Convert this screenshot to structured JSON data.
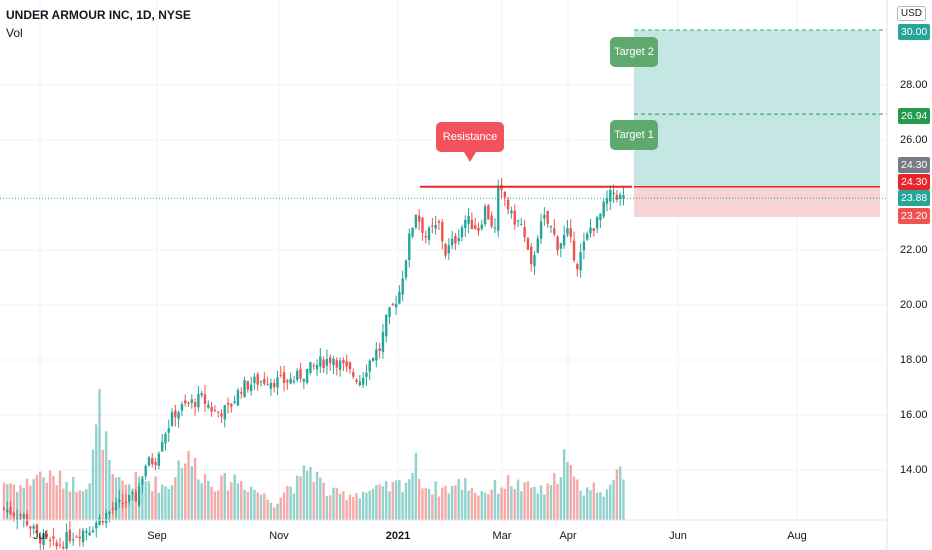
{
  "header": {
    "title": "UNDER ARMOUR INC, 1D, NYSE",
    "volume_label": "Vol",
    "currency": "USD"
  },
  "colors": {
    "up": "#26a69a",
    "down": "#ef5350",
    "resistance": "#e8252a",
    "target_zone": "#b2dfdb",
    "stop_zone": "#f8c9c9",
    "callout_red": "#f2525c",
    "callout_green": "#5fa86e"
  },
  "annotations": {
    "resistance": "Resistance",
    "target1": "Target 1",
    "target2": "Target 2"
  },
  "price_labels": {
    "target2": "30.00",
    "target1": "26.94",
    "high": "24.30",
    "entry": "24.30",
    "last": "23.88",
    "stop": "23.20"
  },
  "chart_data": {
    "type": "candlestick",
    "title": "UNDER ARMOUR INC, 1D, NYSE",
    "x_ticks": [
      "Jul",
      "Sep",
      "Nov",
      "2021",
      "Mar",
      "Apr",
      "Jun",
      "Aug"
    ],
    "y_ticks": [
      14,
      16,
      18,
      20,
      22,
      24,
      26,
      28
    ],
    "ylim": [
      12.2,
      31.2
    ],
    "levels": {
      "resistance": 24.3,
      "target1": 26.94,
      "target2": 30.0,
      "entry": 24.3,
      "stop": 23.2,
      "last": 23.88
    },
    "close_path": [
      [
        0,
        12.6
      ],
      [
        6,
        12.3
      ],
      [
        10,
        11.6
      ],
      [
        16,
        11.2
      ],
      [
        20,
        11.6
      ],
      [
        26,
        11.9
      ],
      [
        30,
        12.3
      ],
      [
        36,
        12.8
      ],
      [
        40,
        13.0
      ],
      [
        43,
        14.2
      ],
      [
        46,
        14.4
      ],
      [
        48,
        15.2
      ],
      [
        52,
        16.1
      ],
      [
        56,
        16.4
      ],
      [
        60,
        16.6
      ],
      [
        64,
        16.1
      ],
      [
        68,
        16.2
      ],
      [
        72,
        17.0
      ],
      [
        76,
        17.2
      ],
      [
        80,
        17.3
      ],
      [
        84,
        17.2
      ],
      [
        88,
        17.3
      ],
      [
        92,
        17.6
      ],
      [
        96,
        17.9
      ],
      [
        100,
        18.1
      ],
      [
        104,
        17.6
      ],
      [
        108,
        17.3
      ],
      [
        112,
        18.2
      ],
      [
        114,
        18.4
      ],
      [
        116,
        19.4
      ],
      [
        120,
        20.5
      ],
      [
        123,
        22.4
      ],
      [
        125,
        23.4
      ],
      [
        128,
        22.5
      ],
      [
        132,
        22.9
      ],
      [
        134,
        21.9
      ],
      [
        137,
        22.4
      ],
      [
        140,
        23.1
      ],
      [
        144,
        22.8
      ],
      [
        146,
        23.5
      ],
      [
        149,
        22.7
      ],
      [
        150,
        24.1
      ],
      [
        152,
        23.9
      ],
      [
        154,
        23.2
      ],
      [
        157,
        22.9
      ],
      [
        160,
        21.3
      ],
      [
        162,
        22.6
      ],
      [
        164,
        23.1
      ],
      [
        166,
        22.8
      ],
      [
        168,
        22.2
      ],
      [
        171,
        22.6
      ],
      [
        174,
        21.5
      ],
      [
        178,
        22.8
      ],
      [
        180,
        23.0
      ],
      [
        183,
        23.8
      ],
      [
        185,
        24.1
      ],
      [
        187,
        23.9
      ],
      [
        188,
        23.88
      ]
    ],
    "volume": [
      [
        0,
        0.35
      ],
      [
        6,
        0.3
      ],
      [
        10,
        0.42
      ],
      [
        14,
        0.38
      ],
      [
        18,
        0.36
      ],
      [
        22,
        0.32
      ],
      [
        26,
        0.35
      ],
      [
        29,
        1.0
      ],
      [
        33,
        0.34
      ],
      [
        38,
        0.33
      ],
      [
        42,
        0.38
      ],
      [
        46,
        0.33
      ],
      [
        50,
        0.3
      ],
      [
        54,
        0.58
      ],
      [
        58,
        0.5
      ],
      [
        62,
        0.36
      ],
      [
        66,
        0.33
      ],
      [
        70,
        0.38
      ],
      [
        74,
        0.32
      ],
      [
        78,
        0.24
      ],
      [
        82,
        0.15
      ],
      [
        86,
        0.3
      ],
      [
        90,
        0.34
      ],
      [
        92,
        0.5
      ],
      [
        95,
        0.4
      ],
      [
        98,
        0.25
      ],
      [
        102,
        0.23
      ],
      [
        106,
        0.24
      ],
      [
        110,
        0.26
      ],
      [
        114,
        0.27
      ],
      [
        118,
        0.3
      ],
      [
        122,
        0.35
      ],
      [
        125,
        0.5
      ],
      [
        128,
        0.3
      ],
      [
        132,
        0.28
      ],
      [
        136,
        0.3
      ],
      [
        140,
        0.34
      ],
      [
        144,
        0.25
      ],
      [
        148,
        0.28
      ],
      [
        151,
        0.32
      ],
      [
        154,
        0.35
      ],
      [
        158,
        0.28
      ],
      [
        160,
        0.3
      ],
      [
        163,
        0.26
      ],
      [
        166,
        0.28
      ],
      [
        170,
        0.58
      ],
      [
        173,
        0.35
      ],
      [
        176,
        0.28
      ],
      [
        180,
        0.3
      ],
      [
        184,
        0.26
      ],
      [
        187,
        0.45
      ]
    ]
  }
}
